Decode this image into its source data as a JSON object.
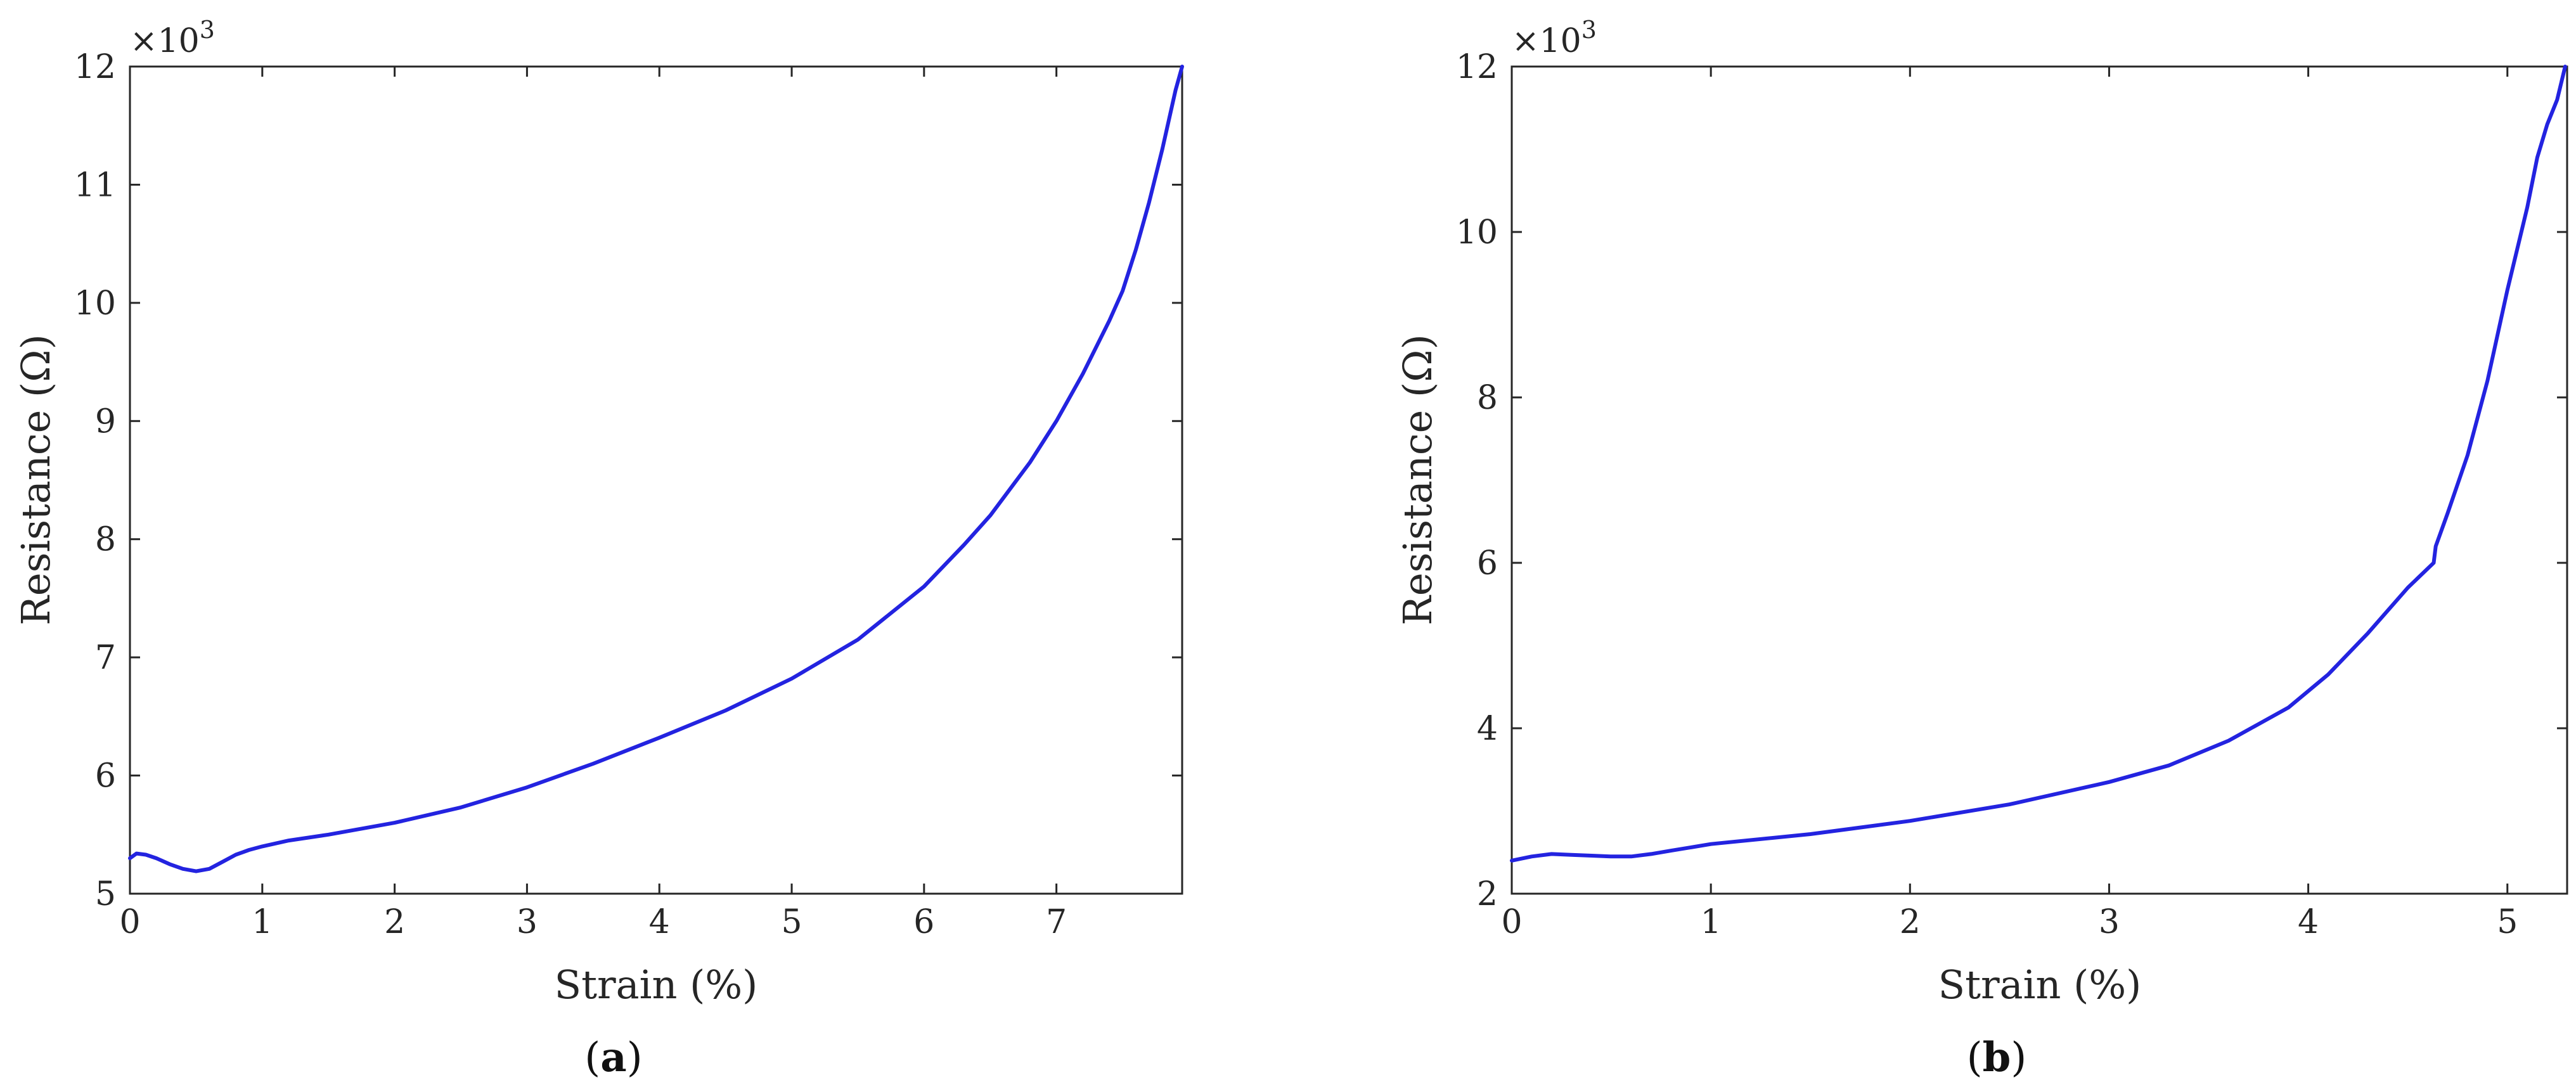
{
  "chart_data": [
    {
      "type": "line",
      "panel_label": "a",
      "xlabel": "Strain (%)",
      "ylabel": "Resistance (Ω)",
      "y_multiplier_base": "×10",
      "y_multiplier_exp": "3",
      "xlim": [
        0,
        7.95
      ],
      "ylim": [
        5,
        12
      ],
      "x_ticks": [
        0,
        1,
        2,
        3,
        4,
        5,
        6,
        7
      ],
      "y_ticks": [
        5,
        6,
        7,
        8,
        9,
        10,
        11,
        12
      ],
      "grid": false,
      "series": [
        {
          "color": "#2323e0",
          "x": [
            0,
            0.05,
            0.12,
            0.2,
            0.3,
            0.4,
            0.5,
            0.6,
            0.7,
            0.8,
            0.9,
            1.0,
            1.2,
            1.5,
            2.0,
            2.5,
            3.0,
            3.5,
            4.0,
            4.5,
            5.0,
            5.5,
            6.0,
            6.3,
            6.5,
            6.8,
            7.0,
            7.2,
            7.4,
            7.5,
            7.6,
            7.7,
            7.8,
            7.9,
            7.95
          ],
          "y": [
            5.3,
            5.34,
            5.33,
            5.3,
            5.25,
            5.21,
            5.19,
            5.21,
            5.27,
            5.33,
            5.37,
            5.4,
            5.45,
            5.5,
            5.6,
            5.73,
            5.9,
            6.1,
            6.32,
            6.55,
            6.82,
            7.15,
            7.6,
            7.95,
            8.2,
            8.65,
            9.0,
            9.4,
            9.85,
            10.1,
            10.45,
            10.85,
            11.3,
            11.8,
            12.0
          ]
        }
      ]
    },
    {
      "type": "line",
      "panel_label": "b",
      "xlabel": "Strain (%)",
      "ylabel": "Resistance (Ω)",
      "y_multiplier_base": "×10",
      "y_multiplier_exp": "3",
      "xlim": [
        0,
        5.3
      ],
      "ylim": [
        2,
        12
      ],
      "x_ticks": [
        0,
        1,
        2,
        3,
        4,
        5
      ],
      "y_ticks": [
        2,
        4,
        6,
        8,
        10,
        12
      ],
      "grid": false,
      "series": [
        {
          "color": "#2323e0",
          "x": [
            0,
            0.1,
            0.2,
            0.3,
            0.4,
            0.5,
            0.6,
            0.7,
            0.8,
            1.0,
            1.5,
            2.0,
            2.5,
            3.0,
            3.3,
            3.6,
            3.9,
            4.1,
            4.3,
            4.5,
            4.63,
            4.64,
            4.7,
            4.8,
            4.9,
            5.0,
            5.05,
            5.1,
            5.15,
            5.2,
            5.25,
            5.29
          ],
          "y": [
            2.4,
            2.45,
            2.48,
            2.47,
            2.46,
            2.45,
            2.45,
            2.48,
            2.52,
            2.6,
            2.72,
            2.88,
            3.08,
            3.35,
            3.55,
            3.85,
            4.25,
            4.65,
            5.15,
            5.7,
            6.0,
            6.2,
            6.6,
            7.3,
            8.2,
            9.3,
            9.8,
            10.3,
            10.9,
            11.3,
            11.6,
            12.0
          ]
        }
      ]
    }
  ]
}
